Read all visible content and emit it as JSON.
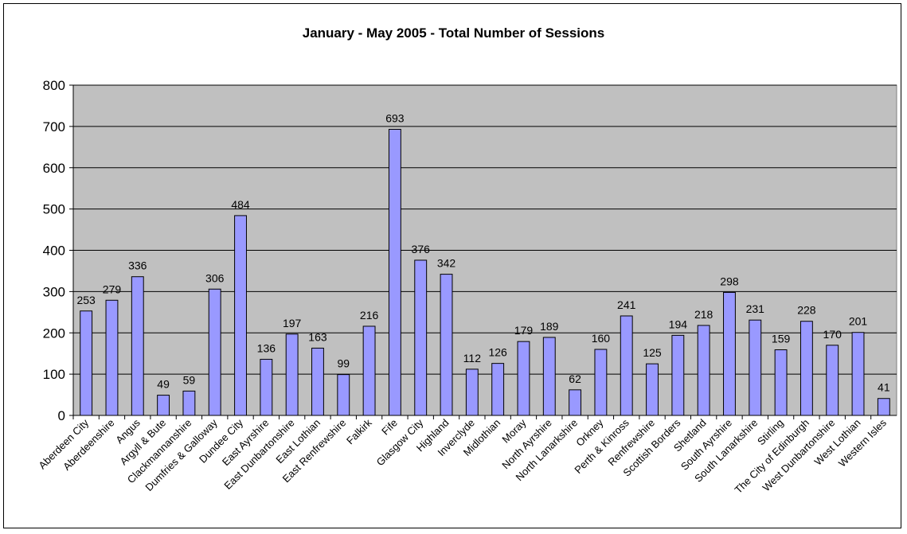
{
  "chart_data": {
    "type": "bar",
    "title": "January - May 2005 - Total Number of Sessions",
    "xlabel": "",
    "ylabel": "",
    "ylim": [
      0,
      800
    ],
    "yticks": [
      0,
      100,
      200,
      300,
      400,
      500,
      600,
      700,
      800
    ],
    "grid": true,
    "legend": "none",
    "colors": {
      "bar": "#9999ff",
      "plot_bg": "#c0c0c0",
      "grid": "#000000"
    },
    "categories": [
      "Aberdeen City",
      "Aberdeenshire",
      "Angus",
      "Argyll & Bute",
      "Clackmannanshire",
      "Dumfries & Galloway",
      "Dundee City",
      "East Ayrshire",
      "East Dunbartonshire",
      "East Lothian",
      "East Renfrewshire",
      "Falkirk",
      "Fife",
      "Glasgow City",
      "Highland",
      "Inverclyde",
      "Midlothian",
      "Moray",
      "North Ayrshire",
      "North Lanarkshire",
      "Orkney",
      "Perth & Kinross",
      "Renfrewshire",
      "Scottish Borders",
      "Shetland",
      "South Ayrshire",
      "South Lanarkshire",
      "Stirling",
      "The City of Edinburgh",
      "West Dunbartonshire",
      "West Lothian",
      "Western Isles"
    ],
    "values": [
      253,
      279,
      336,
      49,
      59,
      306,
      484,
      136,
      197,
      163,
      99,
      216,
      693,
      376,
      342,
      112,
      126,
      179,
      189,
      62,
      160,
      241,
      125,
      194,
      218,
      298,
      231,
      159,
      228,
      170,
      201,
      41
    ],
    "data_labels": [
      "253",
      "279",
      "336",
      "49",
      "59",
      "306",
      "484",
      "136",
      "197",
      "163",
      "99",
      "216",
      "693",
      "376",
      "342",
      "112",
      "126",
      "179",
      "189",
      "62",
      "160",
      "241",
      "125",
      "194",
      "218",
      "298",
      "231",
      "159",
      "228",
      "170",
      "201",
      "41"
    ]
  }
}
